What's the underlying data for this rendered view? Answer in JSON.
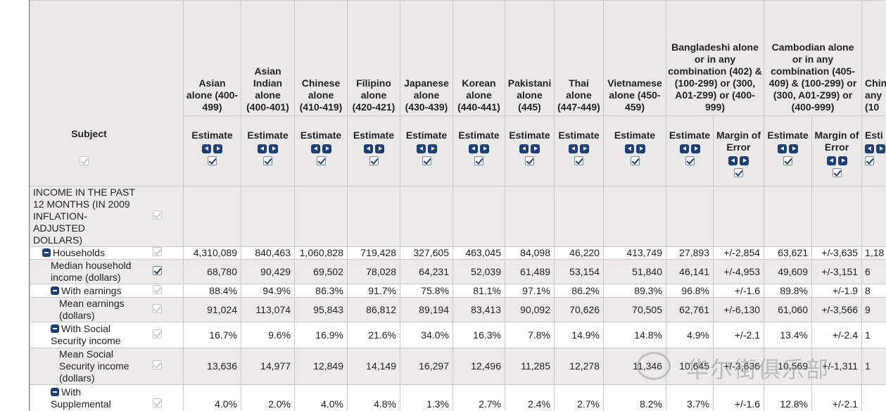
{
  "table": {
    "subject_header": "Subject",
    "columns": [
      {
        "header": "Asian alone (400-499)",
        "subheaders": [
          "Estimate"
        ]
      },
      {
        "header": "Asian Indian alone (400-401)",
        "subheaders": [
          "Estimate"
        ]
      },
      {
        "header": "Chinese alone (410-419)",
        "subheaders": [
          "Estimate"
        ]
      },
      {
        "header": "Filipino alone (420-421)",
        "subheaders": [
          "Estimate"
        ]
      },
      {
        "header": "Japanese alone (430-439)",
        "subheaders": [
          "Estimate"
        ]
      },
      {
        "header": "Korean alone (440-441)",
        "subheaders": [
          "Estimate"
        ]
      },
      {
        "header": "Pakistani alone (445)",
        "subheaders": [
          "Estimate"
        ]
      },
      {
        "header": "Thai alone (447-449)",
        "subheaders": [
          "Estimate"
        ]
      },
      {
        "header": "Vietnamese alone (450-459)",
        "subheaders": [
          "Estimate"
        ]
      },
      {
        "header": "Bangladeshi alone or in any combination (402) & (100-299) or (300, A01-Z99) or (400-999)",
        "subheaders": [
          "Estimate",
          "Margin of Error"
        ]
      },
      {
        "header": "Cambodian alone or in any combination (405-409) & (100-299) or (300, A01-Z99) or (400-999)",
        "subheaders": [
          "Estimate",
          "Margin of Error"
        ]
      },
      {
        "header": "Chin any (10",
        "subheaders": [
          "Esti"
        ]
      }
    ],
    "rows": [
      {
        "label": "INCOME IN THE PAST 12 MONTHS (IN 2009 INFLATION-ADJUSTED DOLLARS)",
        "values": [
          null,
          null,
          null,
          null,
          null,
          null,
          null,
          null,
          null,
          null,
          null,
          null,
          null,
          null
        ]
      },
      {
        "label": "Households",
        "values": [
          "4,310,089",
          "840,463",
          "1,060,828",
          "719,428",
          "327,605",
          "463,045",
          "84,098",
          "46,220",
          "413,749",
          "27,893",
          "+/-2,854",
          "63,621",
          "+/-3,635",
          "1,18"
        ]
      },
      {
        "label": "Median household income (dollars)",
        "values": [
          "68,780",
          "90,429",
          "69,502",
          "78,028",
          "64,231",
          "52,039",
          "61,489",
          "53,154",
          "51,840",
          "46,141",
          "+/-4,953",
          "49,609",
          "+/-3,151",
          "6"
        ]
      },
      {
        "label": "With earnings",
        "values": [
          "88.4%",
          "94.9%",
          "86.3%",
          "91.7%",
          "75.8%",
          "81.1%",
          "97.1%",
          "86.2%",
          "89.3%",
          "96.8%",
          "+/-1.6",
          "89.8%",
          "+/-1.9",
          "8"
        ]
      },
      {
        "label": "Mean earnings (dollars)",
        "values": [
          "91,024",
          "113,074",
          "95,843",
          "86,812",
          "89,194",
          "83,413",
          "90,092",
          "70,626",
          "70,505",
          "62,761",
          "+/-6,130",
          "61,060",
          "+/-3,566",
          "9"
        ]
      },
      {
        "label": "With Social Security income",
        "values": [
          "16.7%",
          "9.6%",
          "16.9%",
          "21.6%",
          "34.0%",
          "16.3%",
          "7.8%",
          "14.9%",
          "14.8%",
          "4.9%",
          "+/-2.1",
          "13.4%",
          "+/-2.4",
          "1"
        ]
      },
      {
        "label": "Mean Social Security income (dollars)",
        "values": [
          "13,636",
          "14,977",
          "12,849",
          "14,149",
          "16,297",
          "12,496",
          "11,285",
          "12,278",
          "11,346",
          "10,645",
          "+/-3,636",
          "10,569",
          "+/-1,311",
          "1"
        ]
      },
      {
        "label": "With Supplemental Security Income",
        "values": [
          "4.0%",
          "2.0%",
          "4.0%",
          "4.8%",
          "1.3%",
          "2.7%",
          "2.4%",
          "2.7%",
          "8.2%",
          "3.7%",
          "+/-1.6",
          "12.8%",
          "+/-2.1",
          null
        ]
      }
    ],
    "watermark": "华尔街俱乐部"
  }
}
